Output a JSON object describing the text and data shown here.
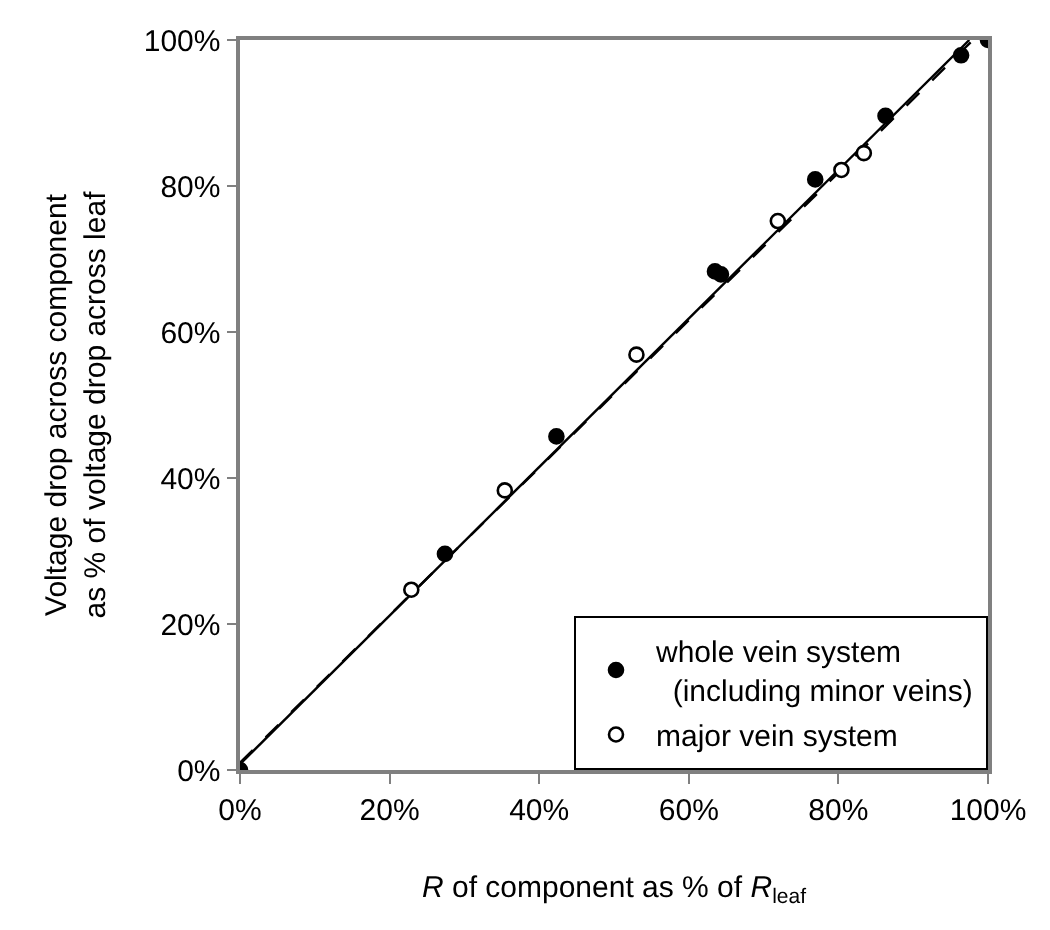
{
  "chart_data": {
    "type": "scatter",
    "xlabel": "R of component as % of R$_{leaf}$",
    "ylabel": "Voltage drop across component\nas % of voltage drop across leaf",
    "series": [
      {
        "name": "whole vein system\n  (including minor veins)",
        "color": "#000000",
        "marker": "circle",
        "x": [
          0,
          27.4,
          42.3,
          63.5,
          64.3,
          76.9,
          86.3,
          96.4,
          100
        ],
        "values": [
          0,
          29.6,
          45.7,
          68.3,
          67.9,
          80.9,
          89.6,
          97.9,
          100
        ]
      },
      {
        "name": "major vein system",
        "color": "#ffffff",
        "marker": "circle",
        "x": [
          22.9,
          35.4,
          53.0,
          71.9,
          80.4,
          83.4
        ],
        "values": [
          24.7,
          38.3,
          56.9,
          75.2,
          82.2,
          84.5
        ]
      },
      {
        "type": "line",
        "color": "#000000",
        "marker": "none",
        "line_style": "solid",
        "x": [
          0,
          97.5
        ],
        "values": [
          0.8,
          100
        ]
      },
      {
        "type": "line",
        "color": "#000000",
        "marker": "none",
        "line_style": "dashed",
        "x": [
          0,
          98
        ],
        "values": [
          1,
          100
        ]
      }
    ],
    "xlim": [
      0,
      100
    ],
    "ylim": [
      0,
      100
    ],
    "xticks": [
      {
        "value": 0,
        "label": "0%"
      },
      {
        "value": 20,
        "label": "20%"
      },
      {
        "value": 40,
        "label": "40%"
      },
      {
        "value": 60,
        "label": "60%"
      },
      {
        "value": 80,
        "label": "80%"
      },
      {
        "value": 100,
        "label": "100%"
      }
    ],
    "yticks": [
      {
        "value": 0,
        "label": "0%"
      },
      {
        "value": 20,
        "label": "20%"
      },
      {
        "value": 40,
        "label": "40%"
      },
      {
        "value": 60,
        "label": "60%"
      },
      {
        "value": 80,
        "label": "80%"
      },
      {
        "value": 100,
        "label": "100%"
      }
    ],
    "legend": "bottom right"
  }
}
